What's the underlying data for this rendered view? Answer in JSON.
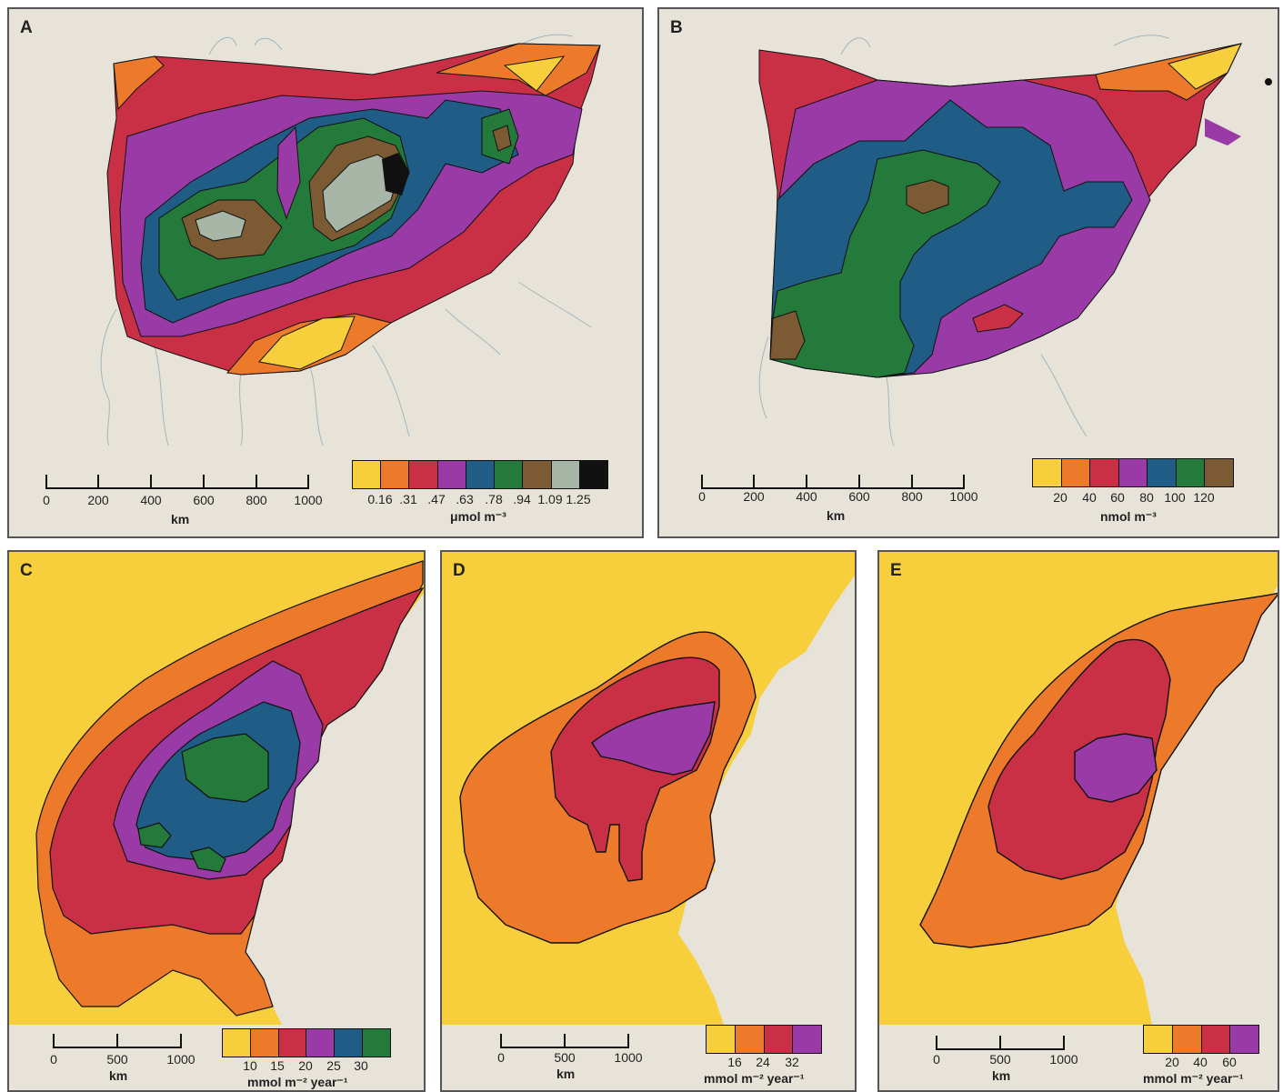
{
  "colors": {
    "yellow": "#f7cf3d",
    "orange": "#ec7a2a",
    "red": "#c93046",
    "purple": "#9a3aa6",
    "blue": "#1f5c86",
    "green": "#237a3a",
    "brown": "#7c5a33",
    "lightgreen": "#a7b6a6",
    "black": "#111111",
    "background": "#e7e3d8"
  },
  "panels": {
    "a": {
      "letter": "A",
      "scale_ticks": [
        "0",
        "200",
        "400",
        "600",
        "800",
        "1000"
      ],
      "scale_unit": "km",
      "legend_colors": [
        "yellow",
        "orange",
        "red",
        "purple",
        "blue",
        "green",
        "brown",
        "lightgreen",
        "black"
      ],
      "legend_labels": [
        "0.16",
        ".31",
        ".47",
        ".63",
        ".78",
        ".94",
        "1.09",
        "1.25"
      ],
      "legend_unit": "μmol m⁻³"
    },
    "b": {
      "letter": "B",
      "scale_ticks": [
        "0",
        "200",
        "400",
        "600",
        "800",
        "1000"
      ],
      "scale_unit": "km",
      "legend_colors": [
        "yellow",
        "orange",
        "red",
        "purple",
        "blue",
        "green",
        "brown"
      ],
      "legend_labels": [
        "20",
        "40",
        "60",
        "80",
        "100",
        "120"
      ],
      "legend_unit": "nmol m⁻³"
    },
    "c": {
      "letter": "C",
      "scale_ticks": [
        "0",
        "500",
        "1000"
      ],
      "scale_unit": "km",
      "legend_colors": [
        "yellow",
        "orange",
        "red",
        "purple",
        "blue",
        "green"
      ],
      "legend_labels": [
        "10",
        "15",
        "20",
        "25",
        "30"
      ],
      "legend_unit": "mmol m⁻² year⁻¹"
    },
    "d": {
      "letter": "D",
      "scale_ticks": [
        "0",
        "500",
        "1000"
      ],
      "scale_unit": "km",
      "legend_colors": [
        "yellow",
        "orange",
        "red",
        "purple"
      ],
      "legend_labels": [
        "16",
        "24",
        "32"
      ],
      "legend_unit": "mmol m⁻² year⁻¹"
    },
    "e": {
      "letter": "E",
      "scale_ticks": [
        "0",
        "500",
        "1000"
      ],
      "scale_unit": "km",
      "legend_colors": [
        "yellow",
        "orange",
        "red",
        "purple"
      ],
      "legend_labels": [
        "20",
        "40",
        "60"
      ],
      "legend_unit": "mmol m⁻² year⁻¹"
    }
  }
}
